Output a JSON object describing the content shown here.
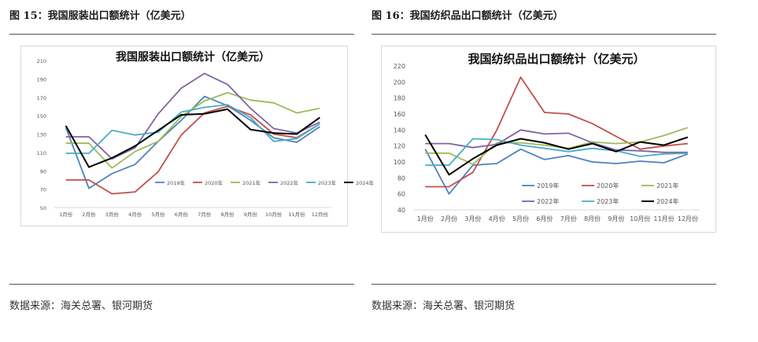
{
  "left": {
    "fig_title": "图 15：我国服装出口额统计（亿美元）",
    "source": "数据来源：海关总署、银河期货"
  },
  "right": {
    "fig_title": "图 16：我国纺织品出口额统计（亿美元）",
    "source": "数据来源：海关总署、银河期货"
  },
  "colors": {
    "2019年": "#4f81bd",
    "2020年": "#c0504d",
    "2021年": "#9bbb59",
    "2022年": "#8064a2",
    "2023年": "#4bacc6",
    "2024年": "#000000"
  },
  "chart_data": [
    {
      "type": "line",
      "title": "我国服装出口额统计（亿美元）",
      "categories": [
        "1月份",
        "2月份",
        "3月份",
        "4月份",
        "5月份",
        "6月份",
        "7月份",
        "8月份",
        "9月份",
        "10月份",
        "11月份",
        "12月份"
      ],
      "ylim": [
        50,
        210
      ],
      "yticks": [
        50,
        70,
        90,
        110,
        130,
        150,
        170,
        190,
        210
      ],
      "legend": "bottom",
      "series": [
        {
          "name": "2019年",
          "values": [
            137,
            71,
            87,
            97,
            122,
            145,
            171,
            161,
            145,
            126,
            121,
            138
          ]
        },
        {
          "name": "2020年",
          "values": [
            80,
            80,
            65,
            67,
            89,
            129,
            153,
            160,
            151,
            130,
            126,
            141
          ]
        },
        {
          "name": "2021年",
          "values": [
            120,
            120,
            93,
            111,
            122,
            149,
            166,
            175,
            167,
            164,
            153,
            158
          ]
        },
        {
          "name": "2022年",
          "values": [
            127,
            127,
            103,
            115,
            152,
            180,
            196,
            184,
            158,
            136,
            131,
            143
          ]
        },
        {
          "name": "2023年",
          "values": [
            109,
            109,
            134,
            129,
            132,
            154,
            159,
            162,
            148,
            122,
            125,
            141
          ]
        },
        {
          "name": "2024年",
          "values": [
            139,
            94,
            104,
            117,
            134,
            151,
            152,
            157,
            135,
            131,
            130,
            148
          ]
        }
      ]
    },
    {
      "type": "line",
      "title": "我国纺织品出口额统计（亿美元）",
      "categories": [
        "1月份",
        "2月份",
        "3月份",
        "4月份",
        "5月份",
        "6月份",
        "7月份",
        "8月份",
        "9月份",
        "10月份",
        "11月份",
        "12月份"
      ],
      "ylim": [
        40,
        220
      ],
      "yticks": [
        40,
        60,
        80,
        100,
        120,
        140,
        160,
        180,
        200,
        220
      ],
      "legend": "bottom",
      "series": [
        {
          "name": "2019年",
          "values": [
            116,
            60,
            96,
            98,
            116,
            103,
            108,
            100,
            98,
            101,
            99,
            110
          ]
        },
        {
          "name": "2020年",
          "values": [
            69,
            69,
            87,
            140,
            206,
            162,
            160,
            148,
            132,
            116,
            120,
            123
          ]
        },
        {
          "name": "2021年",
          "values": [
            111,
            111,
            97,
            124,
            124,
            121,
            117,
            125,
            123,
            125,
            133,
            143
          ]
        },
        {
          "name": "2022年",
          "values": [
            123,
            123,
            118,
            122,
            140,
            135,
            136,
            124,
            115,
            114,
            112,
            112
          ]
        },
        {
          "name": "2023年",
          "values": [
            96,
            96,
            129,
            128,
            121,
            117,
            113,
            117,
            114,
            107,
            110,
            111
          ]
        },
        {
          "name": "2024年",
          "values": [
            134,
            84,
            104,
            121,
            129,
            124,
            116,
            123,
            113,
            125,
            121,
            131
          ]
        }
      ]
    }
  ]
}
